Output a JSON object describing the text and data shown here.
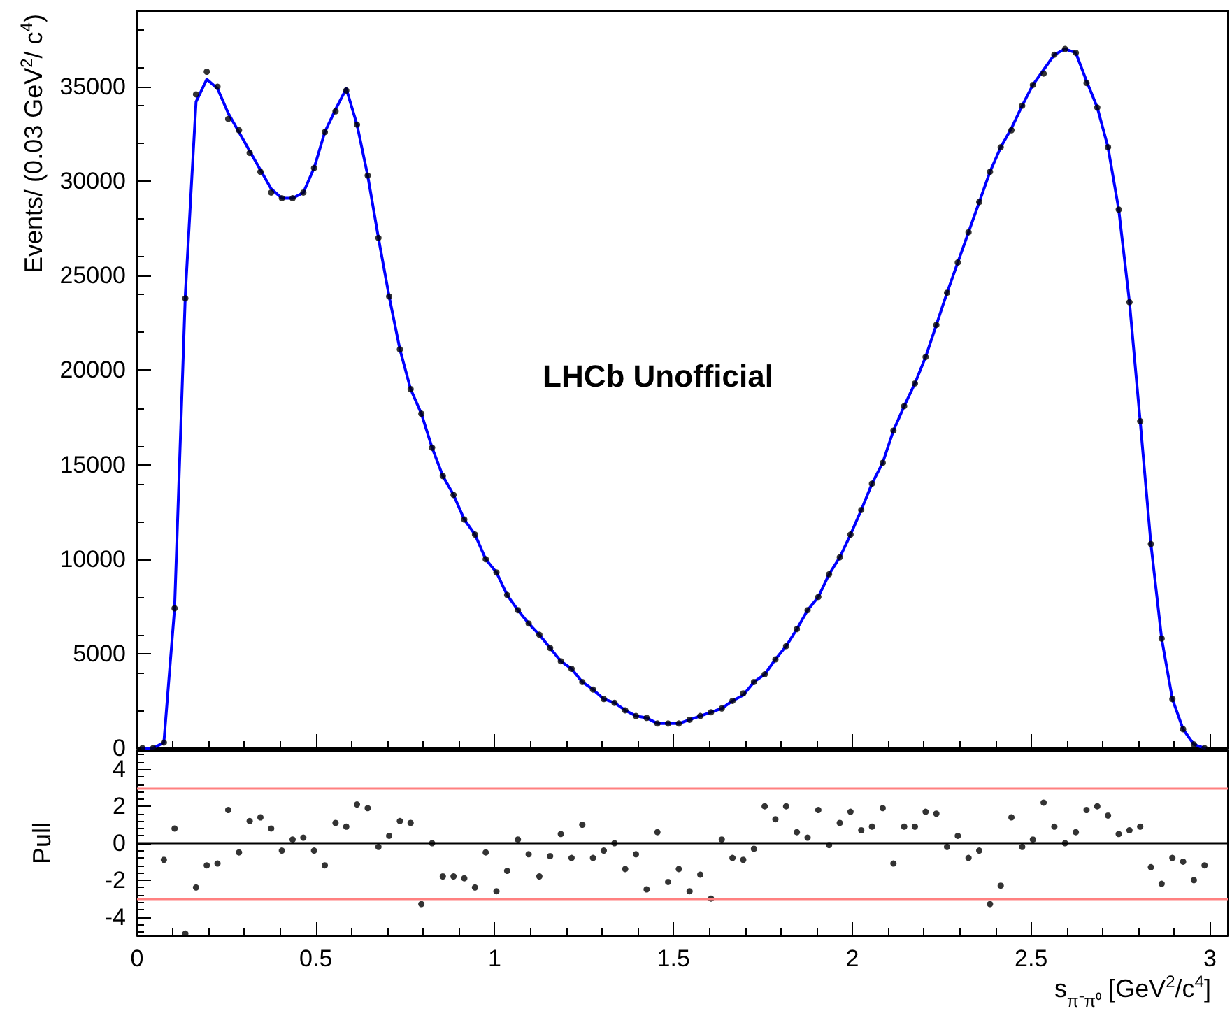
{
  "chart_data": [
    {
      "type": "scatter",
      "ylabel": "Events/ (0.03 GeV$^{2}$/ c$^{4}$)",
      "annotations": [
        "LHCb Unofficial"
      ],
      "x": [
        0.015,
        0.045,
        0.075,
        0.105,
        0.135,
        0.165,
        0.195,
        0.225,
        0.255,
        0.285,
        0.315,
        0.345,
        0.375,
        0.405,
        0.435,
        0.465,
        0.495,
        0.525,
        0.555,
        0.585,
        0.615,
        0.645,
        0.675,
        0.705,
        0.735,
        0.765,
        0.795,
        0.825,
        0.855,
        0.885,
        0.915,
        0.945,
        0.975,
        1.005,
        1.035,
        1.065,
        1.095,
        1.125,
        1.155,
        1.185,
        1.215,
        1.245,
        1.275,
        1.305,
        1.335,
        1.365,
        1.395,
        1.425,
        1.455,
        1.485,
        1.515,
        1.545,
        1.575,
        1.605,
        1.635,
        1.665,
        1.695,
        1.725,
        1.755,
        1.785,
        1.815,
        1.845,
        1.875,
        1.905,
        1.935,
        1.965,
        1.995,
        2.025,
        2.055,
        2.085,
        2.115,
        2.145,
        2.175,
        2.205,
        2.235,
        2.265,
        2.295,
        2.325,
        2.355,
        2.385,
        2.415,
        2.445,
        2.475,
        2.505,
        2.535,
        2.565,
        2.595,
        2.625,
        2.655,
        2.685,
        2.715,
        2.745,
        2.775,
        2.805,
        2.835,
        2.865,
        2.895,
        2.925,
        2.955,
        2.985
      ],
      "series": [
        {
          "type": "line",
          "marker": "none",
          "color": "#0000ff",
          "values": [
            0,
            0,
            300,
            7400,
            24000,
            34200,
            35400,
            34900,
            33600,
            32600,
            31600,
            30600,
            29600,
            29100,
            29100,
            29400,
            30700,
            32600,
            33800,
            34900,
            33000,
            30300,
            27000,
            23900,
            21100,
            19000,
            17700,
            15900,
            14400,
            13400,
            12100,
            11300,
            10000,
            9300,
            8100,
            7300,
            6600,
            6000,
            5300,
            4600,
            4200,
            3500,
            3100,
            2600,
            2400,
            2000,
            1700,
            1600,
            1300,
            1300,
            1300,
            1500,
            1700,
            1900,
            2100,
            2500,
            2800,
            3500,
            3900,
            4700,
            5400,
            6300,
            7300,
            8000,
            9200,
            10100,
            11300,
            12600,
            14000,
            15100,
            16800,
            18100,
            19300,
            20700,
            22400,
            24100,
            25700,
            27300,
            28900,
            30500,
            31800,
            32800,
            34000,
            35100,
            35900,
            36700,
            37000,
            36800,
            35300,
            33900,
            31800,
            28500,
            23600,
            17300,
            10800,
            5800,
            2600,
            1000,
            200,
            0
          ]
        },
        {
          "color": "#000000",
          "values": [
            0,
            0,
            300,
            7400,
            23800,
            34600,
            35800,
            35000,
            33300,
            32700,
            31500,
            30500,
            29400,
            29100,
            29100,
            29400,
            30700,
            32600,
            33700,
            34800,
            33000,
            30300,
            27000,
            23900,
            21100,
            19000,
            17700,
            15900,
            14400,
            13400,
            12100,
            11300,
            10000,
            9300,
            8100,
            7300,
            6600,
            6000,
            5300,
            4600,
            4200,
            3500,
            3100,
            2600,
            2400,
            2000,
            1700,
            1600,
            1300,
            1300,
            1300,
            1500,
            1700,
            1900,
            2100,
            2500,
            2900,
            3500,
            3900,
            4700,
            5400,
            6300,
            7300,
            8000,
            9200,
            10100,
            11300,
            12600,
            14000,
            15100,
            16800,
            18100,
            19300,
            20700,
            22400,
            24100,
            25700,
            27300,
            28900,
            30500,
            31800,
            32700,
            34000,
            35100,
            35700,
            36700,
            37000,
            36800,
            35200,
            33900,
            31800,
            28500,
            23600,
            17300,
            10800,
            5800,
            2600,
            1000,
            200,
            0
          ]
        }
      ],
      "xlim": [
        0,
        3.05
      ],
      "xticks": [
        0,
        0.5,
        1,
        1.5,
        2,
        2.5,
        3
      ],
      "ylim": [
        0,
        39000
      ],
      "yticks": [
        0,
        5000,
        10000,
        15000,
        20000,
        25000,
        30000,
        35000
      ],
      "tick_labels": "y",
      "marker": "circle",
      "grid": false
    },
    {
      "type": "scatter",
      "ylabel": "Pull",
      "xlabel": "s$_{π⁻π⁰}$  [GeV$^{2}$/c$^{4}$]",
      "x": [
        0.075,
        0.105,
        0.135,
        0.165,
        0.195,
        0.225,
        0.255,
        0.285,
        0.315,
        0.345,
        0.375,
        0.405,
        0.435,
        0.465,
        0.495,
        0.525,
        0.555,
        0.585,
        0.615,
        0.645,
        0.675,
        0.705,
        0.735,
        0.765,
        0.795,
        0.825,
        0.855,
        0.885,
        0.915,
        0.945,
        0.975,
        1.005,
        1.035,
        1.065,
        1.095,
        1.125,
        1.155,
        1.185,
        1.215,
        1.245,
        1.275,
        1.305,
        1.335,
        1.365,
        1.395,
        1.425,
        1.455,
        1.485,
        1.515,
        1.545,
        1.575,
        1.605,
        1.635,
        1.665,
        1.695,
        1.725,
        1.755,
        1.785,
        1.815,
        1.845,
        1.875,
        1.905,
        1.935,
        1.965,
        1.995,
        2.025,
        2.055,
        2.085,
        2.115,
        2.145,
        2.175,
        2.205,
        2.235,
        2.265,
        2.295,
        2.325,
        2.355,
        2.385,
        2.415,
        2.445,
        2.475,
        2.505,
        2.535,
        2.565,
        2.595,
        2.625,
        2.655,
        2.685,
        2.715,
        2.745,
        2.775,
        2.805,
        2.835,
        2.865,
        2.895,
        2.925,
        2.955,
        2.985
      ],
      "series": [
        {
          "color": "#000000",
          "values": [
            -0.9,
            0.8,
            -4.9,
            -2.4,
            -1.2,
            -1.1,
            1.8,
            -0.5,
            1.2,
            1.4,
            0.8,
            -0.4,
            0.2,
            0.3,
            -0.4,
            -1.2,
            1.1,
            0.9,
            2.1,
            1.9,
            -0.2,
            0.4,
            1.2,
            1.1,
            -3.3,
            0.0,
            -1.8,
            -1.8,
            -1.9,
            -2.4,
            -0.5,
            -2.6,
            -1.5,
            0.2,
            -0.6,
            -1.8,
            -0.7,
            0.5,
            -0.8,
            1.0,
            -0.8,
            -0.4,
            0.0,
            -1.4,
            -0.6,
            -2.5,
            0.6,
            -2.1,
            -1.4,
            -2.6,
            -1.7,
            -3.0,
            0.2,
            -0.8,
            -0.9,
            -0.3,
            2.0,
            1.3,
            2.0,
            0.6,
            0.3,
            1.8,
            -0.1,
            1.1,
            1.7,
            0.7,
            0.9,
            1.9,
            -1.1,
            0.9,
            0.9,
            1.7,
            1.6,
            -0.2,
            0.4,
            -0.8,
            -0.4,
            -3.3,
            -2.3,
            1.4,
            -0.2,
            0.2,
            2.2,
            0.9,
            0.0,
            0.6,
            1.8,
            2.0,
            1.5,
            0.5,
            0.7,
            0.9,
            -1.3,
            -2.2,
            -0.8,
            -1.0,
            -2.0,
            -1.2
          ]
        }
      ],
      "ref_lines": [
        {
          "axis": "y",
          "value": 3,
          "color": "#ff8080"
        },
        {
          "axis": "y",
          "value": 0,
          "color": "#000000"
        },
        {
          "axis": "y",
          "value": -3,
          "color": "#ff8080"
        }
      ],
      "xlim": [
        0,
        3.05
      ],
      "xticks": [
        0,
        0.5,
        1,
        1.5,
        2,
        2.5,
        3
      ],
      "ylim": [
        -5,
        5
      ],
      "yticks": [
        -4,
        -2,
        0,
        2,
        4
      ],
      "marker": "circle",
      "grid": false
    }
  ]
}
